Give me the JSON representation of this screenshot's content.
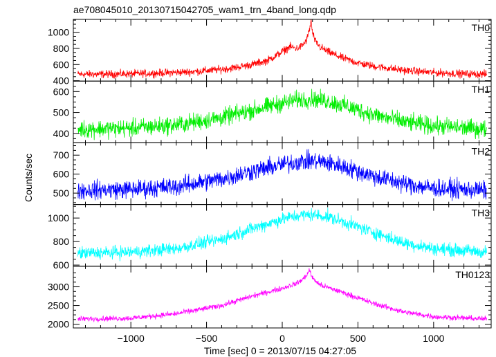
{
  "title": "ae708045010_20130715042705_wam1_trn_4band_long.qdp",
  "xlabel": "Time [sec] 0 = 2013/07/15 04:27:05",
  "ylabel": "Counts/sec",
  "chart_data": {
    "type": "line",
    "title": "ae708045010_20130715042705_wam1_trn_4band_long.qdp",
    "xlabel": "Time [sec] 0 = 2013/07/15 04:27:05",
    "ylabel": "Counts/sec",
    "xlim": [
      -1380,
      1380
    ],
    "xticks": [
      -1000,
      -500,
      0,
      500,
      1000
    ],
    "grid": false,
    "panels": [
      {
        "name": "TH0",
        "color": "#ff0000",
        "ylim": [
          395,
          1160
        ],
        "yticks": [
          400,
          600,
          800,
          1000
        ],
        "x": [
          -1350,
          -1200,
          -1000,
          -800,
          -600,
          -400,
          -300,
          -200,
          -100,
          -50,
          0,
          50,
          100,
          130,
          160,
          180,
          190,
          200,
          220,
          250,
          300,
          400,
          500,
          600,
          800,
          1000,
          1200,
          1350
        ],
        "y": [
          480,
          480,
          485,
          495,
          510,
          540,
          565,
          600,
          650,
          700,
          760,
          820,
          800,
          830,
          900,
          1030,
          1150,
          990,
          880,
          820,
          760,
          680,
          620,
          580,
          530,
          500,
          485,
          480
        ],
        "noise": 40
      },
      {
        "name": "TH1",
        "color": "#00ee00",
        "ylim": [
          355,
          650
        ],
        "yticks": [
          400,
          500,
          600
        ],
        "x": [
          -1350,
          -1000,
          -700,
          -400,
          -200,
          0,
          100,
          200,
          300,
          400,
          600,
          800,
          1000,
          1350
        ],
        "y": [
          420,
          425,
          440,
          475,
          510,
          545,
          560,
          565,
          555,
          535,
          490,
          455,
          435,
          420
        ],
        "noise": 35
      },
      {
        "name": "TH2",
        "color": "#0000ff",
        "ylim": [
          440,
          765
        ],
        "yticks": [
          500,
          600,
          700
        ],
        "x": [
          -1350,
          -1000,
          -700,
          -400,
          -200,
          0,
          100,
          200,
          300,
          400,
          600,
          800,
          1000,
          1350
        ],
        "y": [
          515,
          520,
          535,
          575,
          615,
          650,
          665,
          670,
          660,
          640,
          590,
          550,
          525,
          515
        ],
        "noise": 40
      },
      {
        "name": "TH3",
        "color": "#00ffff",
        "ylim": [
          590,
          1115
        ],
        "yticks": [
          600,
          800,
          1000
        ],
        "x": [
          -1350,
          -1000,
          -700,
          -400,
          -200,
          0,
          100,
          200,
          300,
          400,
          600,
          800,
          1000,
          1350
        ],
        "y": [
          700,
          710,
          740,
          820,
          910,
          990,
          1020,
          1030,
          1010,
          970,
          880,
          790,
          740,
          710
        ],
        "noise": 45
      },
      {
        "name": "TH0123",
        "color": "#ff00ff",
        "ylim": [
          1900,
          3550
        ],
        "yticks": [
          2000,
          2500,
          3000
        ],
        "x": [
          -1350,
          -1000,
          -700,
          -400,
          -200,
          0,
          100,
          150,
          180,
          200,
          250,
          300,
          400,
          600,
          800,
          1000,
          1350
        ],
        "y": [
          2140,
          2160,
          2280,
          2500,
          2750,
          2960,
          3100,
          3250,
          3450,
          3230,
          3050,
          2980,
          2850,
          2560,
          2330,
          2200,
          2140
        ],
        "noise": 60
      }
    ]
  }
}
